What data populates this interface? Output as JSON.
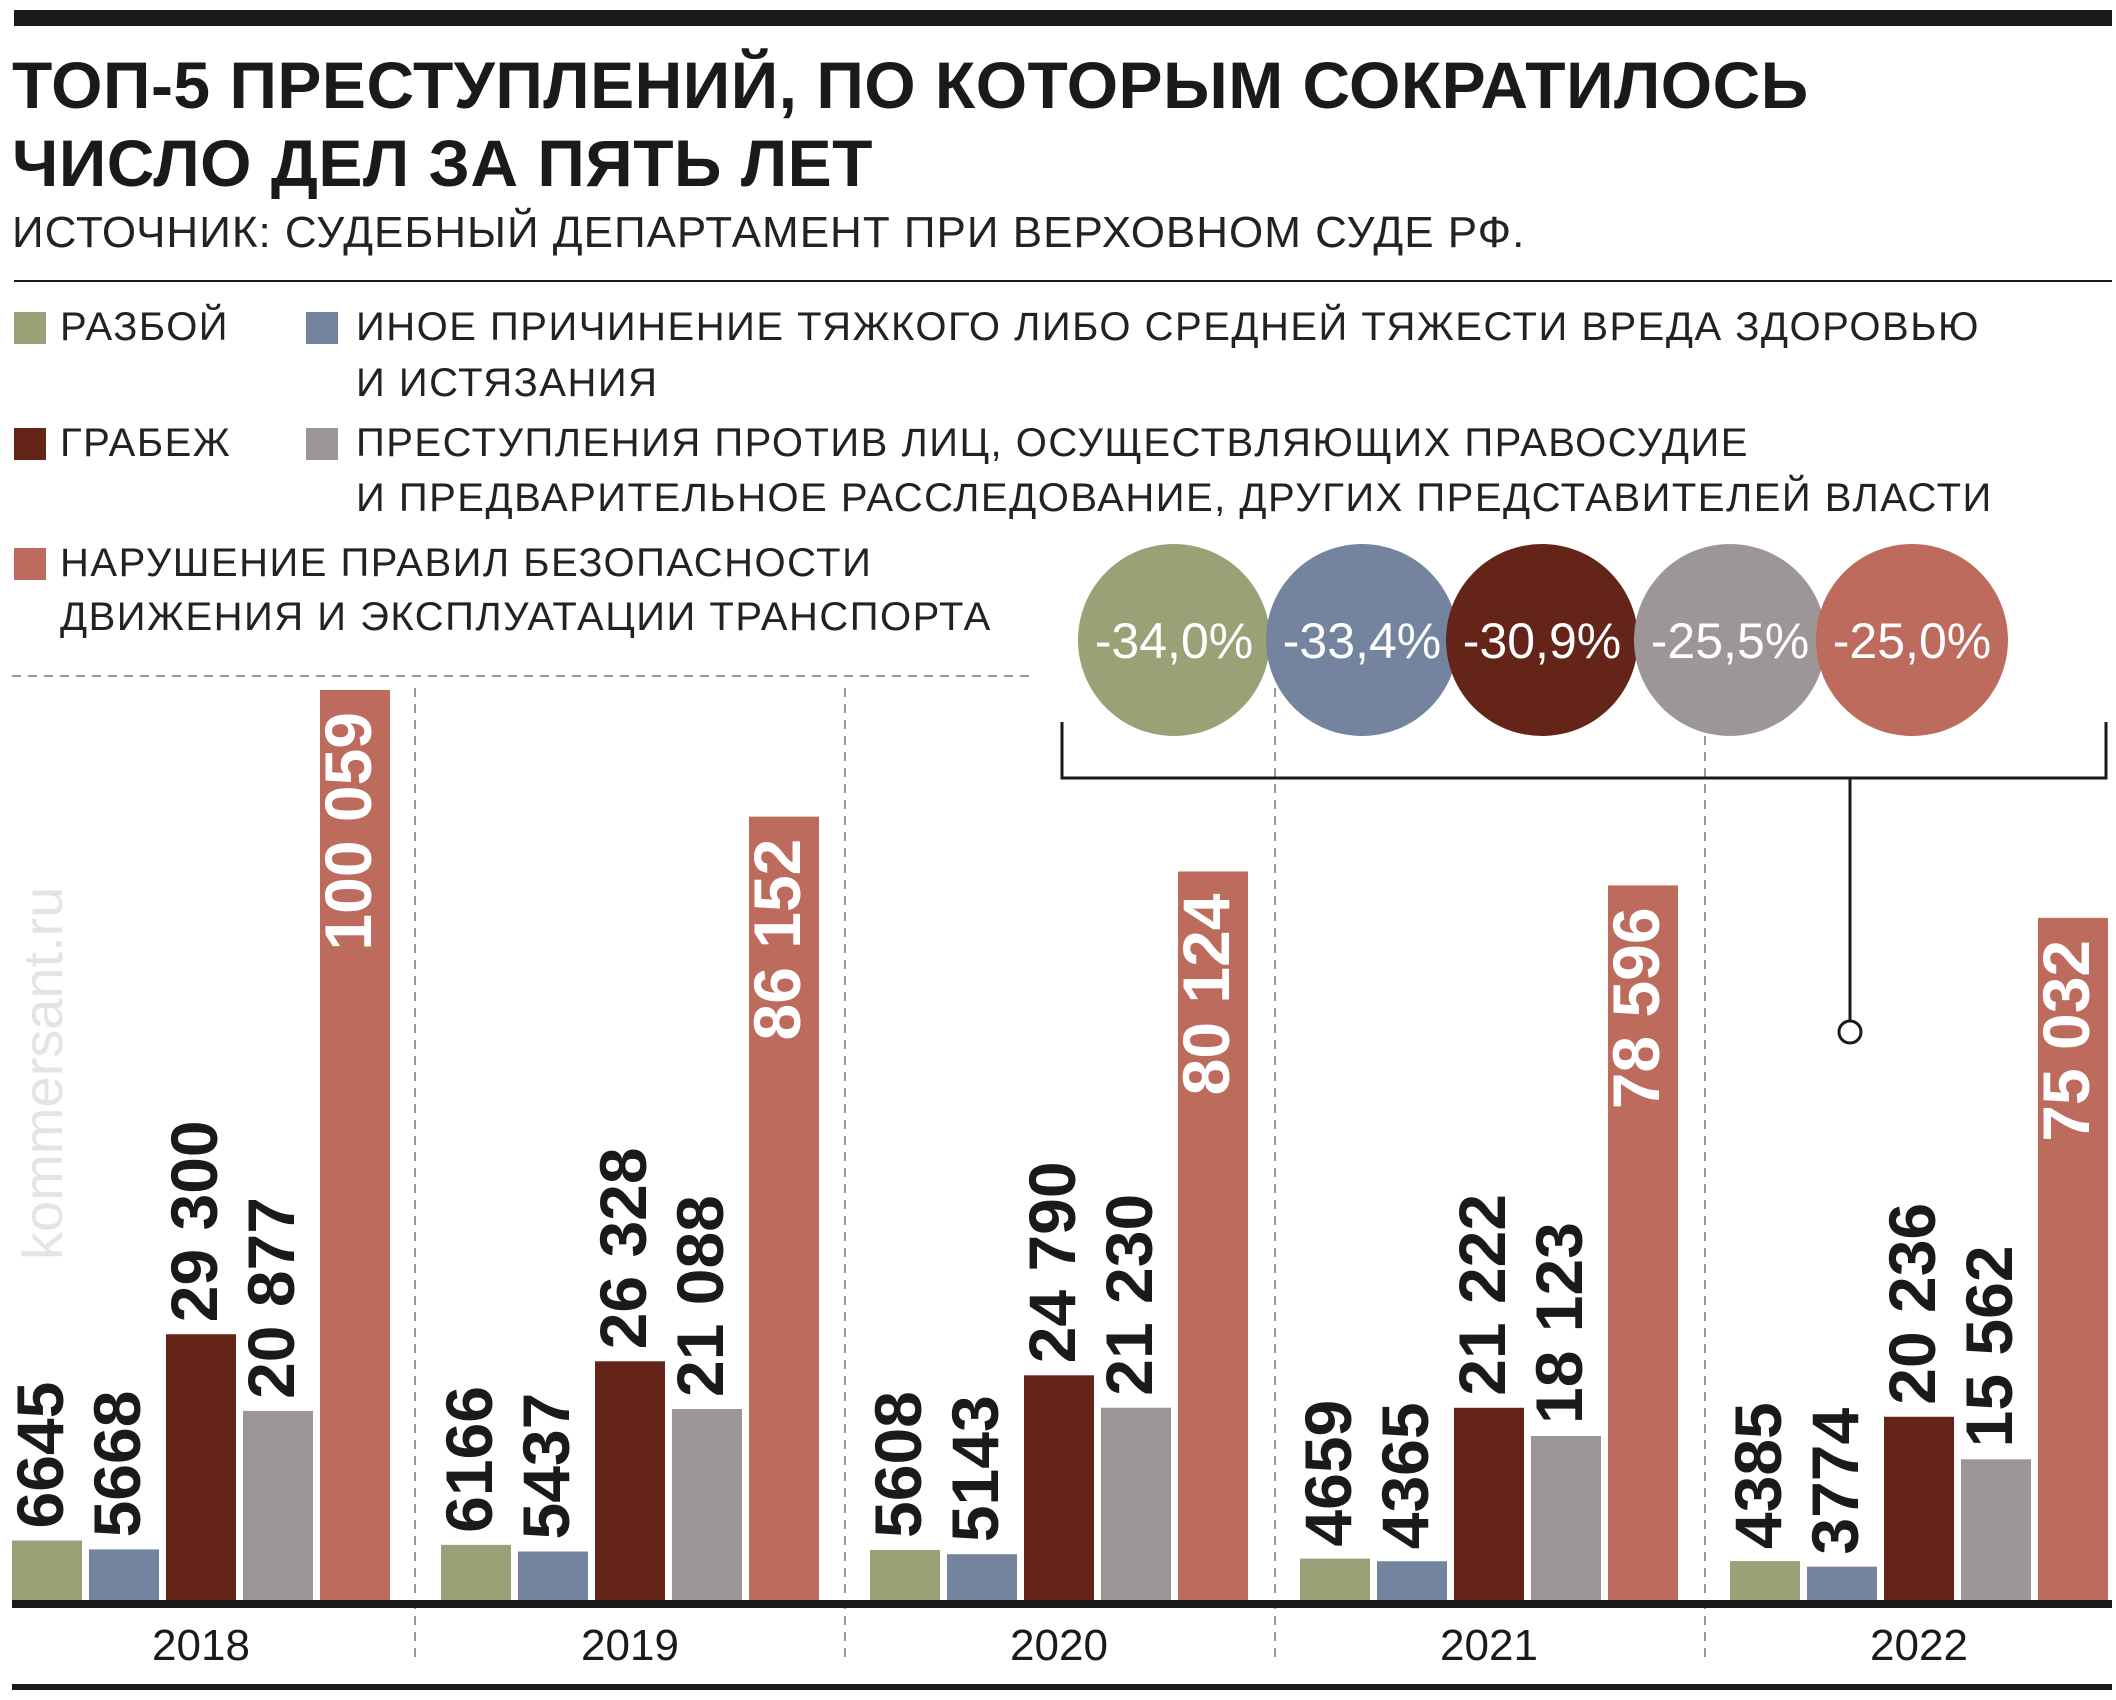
{
  "title_line1": "ТОП-5 ПРЕСТУПЛЕНИЙ, ПО КОТОРЫМ СОКРАТИЛОСЬ",
  "title_line2": "ЧИСЛО ДЕЛ ЗА ПЯТЬ ЛЕТ",
  "subtitle": "ИСТОЧНИК: СУДЕБНЫЙ ДЕПАРТАМЕНТ ПРИ ВЕРХОВНОМ СУДЕ РФ.",
  "watermark": "kommersant.ru",
  "legend": [
    {
      "label_line1": "РАЗБОЙ",
      "label_line2": "",
      "color": "#98a276"
    },
    {
      "label_line1": "ИНОЕ ПРИЧИНЕНИЕ ТЯЖКОГО ЛИБО СРЕДНЕЙ ТЯЖЕСТИ ВРЕДА ЗДОРОВЬЮ",
      "label_line2": "И ИСТЯЗАНИЯ",
      "color": "#74849e"
    },
    {
      "label_line1": "ГРАБЕЖ",
      "label_line2": "",
      "color": "#642418"
    },
    {
      "label_line1": "ПРЕСТУПЛЕНИЯ ПРОТИВ ЛИЦ, ОСУЩЕСТВЛЯЮЩИХ ПРАВОСУДИЕ",
      "label_line2": "И ПРЕДВАРИТЕЛЬНОЕ РАССЛЕДОВАНИЕ, ДРУГИХ ПРЕДСТАВИТЕЛЕЙ ВЛАСТИ",
      "color": "#9c9796"
    },
    {
      "label_line1": "НАРУШЕНИЕ ПРАВИЛ БЕЗОПАСНОСТИ",
      "label_line2": "ДВИЖЕНИЯ И ЭКСПЛУАТАЦИИ ТРАНСПОРТА",
      "color": "#bd6b5d"
    }
  ],
  "changes": [
    {
      "label": "-34,0%",
      "color": "#98a276"
    },
    {
      "label": "-33,4%",
      "color": "#74849e"
    },
    {
      "label": "-30,9%",
      "color": "#642418"
    },
    {
      "label": "-25,5%",
      "color": "#9c9796"
    },
    {
      "label": "-25,0%",
      "color": "#bd6b5d"
    }
  ],
  "chart_data": {
    "type": "bar",
    "categories": [
      "2018",
      "2019",
      "2020",
      "2021",
      "2022"
    ],
    "ylim": [
      0,
      100059
    ],
    "grid": false,
    "legend_position": "top",
    "series": [
      {
        "name": "РАЗБОЙ",
        "color": "#98a276",
        "values": [
          6645,
          6166,
          5608,
          4659,
          4385
        ],
        "labels": [
          "6645",
          "6166",
          "5608",
          "4659",
          "4385"
        ]
      },
      {
        "name": "ИНОЕ ПРИЧИНЕНИЕ ТЯЖКОГО ЛИБО СРЕДНЕЙ ТЯЖЕСТИ ВРЕДА ЗДОРОВЬЮ И ИСТЯЗАНИЯ",
        "color": "#74849e",
        "values": [
          5668,
          5437,
          5143,
          4365,
          3774
        ],
        "labels": [
          "5668",
          "5437",
          "5143",
          "4365",
          "3774"
        ]
      },
      {
        "name": "ГРАБЕЖ",
        "color": "#642418",
        "values": [
          29300,
          26328,
          24790,
          21222,
          20236
        ],
        "labels": [
          "29 300",
          "26 328",
          "24 790",
          "21 222",
          "20 236"
        ]
      },
      {
        "name": "ПРЕСТУПЛЕНИЯ ПРОТИВ ЛИЦ, ОСУЩЕСТВЛЯЮЩИХ ПРАВОСУДИЕ И ПРЕДВАРИТЕЛЬНОЕ РАССЛЕДОВАНИЕ, ДРУГИХ ПРЕДСТАВИТЕЛЕЙ ВЛАСТИ",
        "color": "#9c9796",
        "values": [
          20877,
          21088,
          21230,
          18123,
          15562
        ],
        "labels": [
          "20 877",
          "21 088",
          "21 230",
          "18 123",
          "15 562"
        ]
      },
      {
        "name": "НАРУШЕНИЕ ПРАВИЛ БЕЗОПАСНОСТИ ДВИЖЕНИЯ И ЭКСПЛУАТАЦИИ ТРАНСПОРТА",
        "color": "#bd6b5d",
        "values": [
          100059,
          86152,
          80124,
          78596,
          75032
        ],
        "labels": [
          "100 059",
          "86 152",
          "80 124",
          "78 596",
          "75 032"
        ]
      }
    ]
  }
}
